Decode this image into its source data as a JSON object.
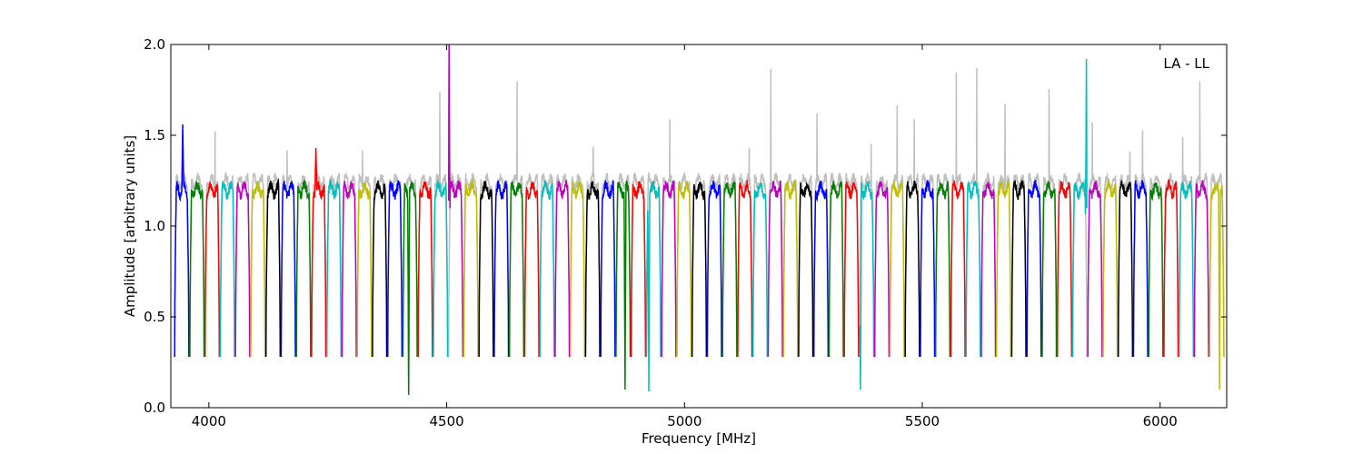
{
  "chart_data": {
    "type": "line",
    "title": "",
    "xlabel": "Frequency [MHz]",
    "ylabel": "Amplitude [arbitrary units]",
    "annotation": "LA - LL",
    "xlim": [
      3920,
      6140
    ],
    "ylim": [
      0.0,
      2.0
    ],
    "xticks": [
      4000,
      4500,
      5000,
      5500,
      6000
    ],
    "yticks": [
      0.0,
      0.5,
      1.0,
      1.5,
      2.0
    ],
    "xtick_labels": [
      "4000",
      "4500",
      "5000",
      "5500",
      "6000"
    ],
    "ytick_labels": [
      "0.0",
      "0.5",
      "1.0",
      "1.5",
      "2.0"
    ],
    "grid": false,
    "background_series": {
      "color": "#bfbfbf",
      "description_visible": false
    },
    "color_cycle": [
      "#0000ff",
      "#008000",
      "#ff0000",
      "#00bfbf",
      "#bf00bf",
      "#bfbf00",
      "#000000"
    ],
    "subbands": {
      "start_mhz": 3928,
      "width_mhz": 32,
      "count": 69,
      "typical_peak": 1.2,
      "typical_trough": 0.28
    },
    "special_features": [
      {
        "x": 3945,
        "y": 1.56,
        "color": "#0000ff"
      },
      {
        "x": 4225,
        "y": 1.43,
        "color": "#ff0000"
      },
      {
        "x": 4420,
        "y": 0.07,
        "color": "#008000",
        "note": "deep trough"
      },
      {
        "x": 4505,
        "y": 2.0,
        "color": "#bf00bf",
        "note": "spike"
      },
      {
        "x": 4875,
        "y": 0.1,
        "color": "#bf00bf"
      },
      {
        "x": 4925,
        "y": 0.09,
        "color": "#00bfbf"
      },
      {
        "x": 5370,
        "y": 0.1,
        "color": "#000000"
      },
      {
        "x": 5845,
        "y": 1.92,
        "color": "#0000ff"
      },
      {
        "x": 6125,
        "y": 0.1,
        "color": "#ff0000",
        "note": "deep trough"
      }
    ]
  }
}
